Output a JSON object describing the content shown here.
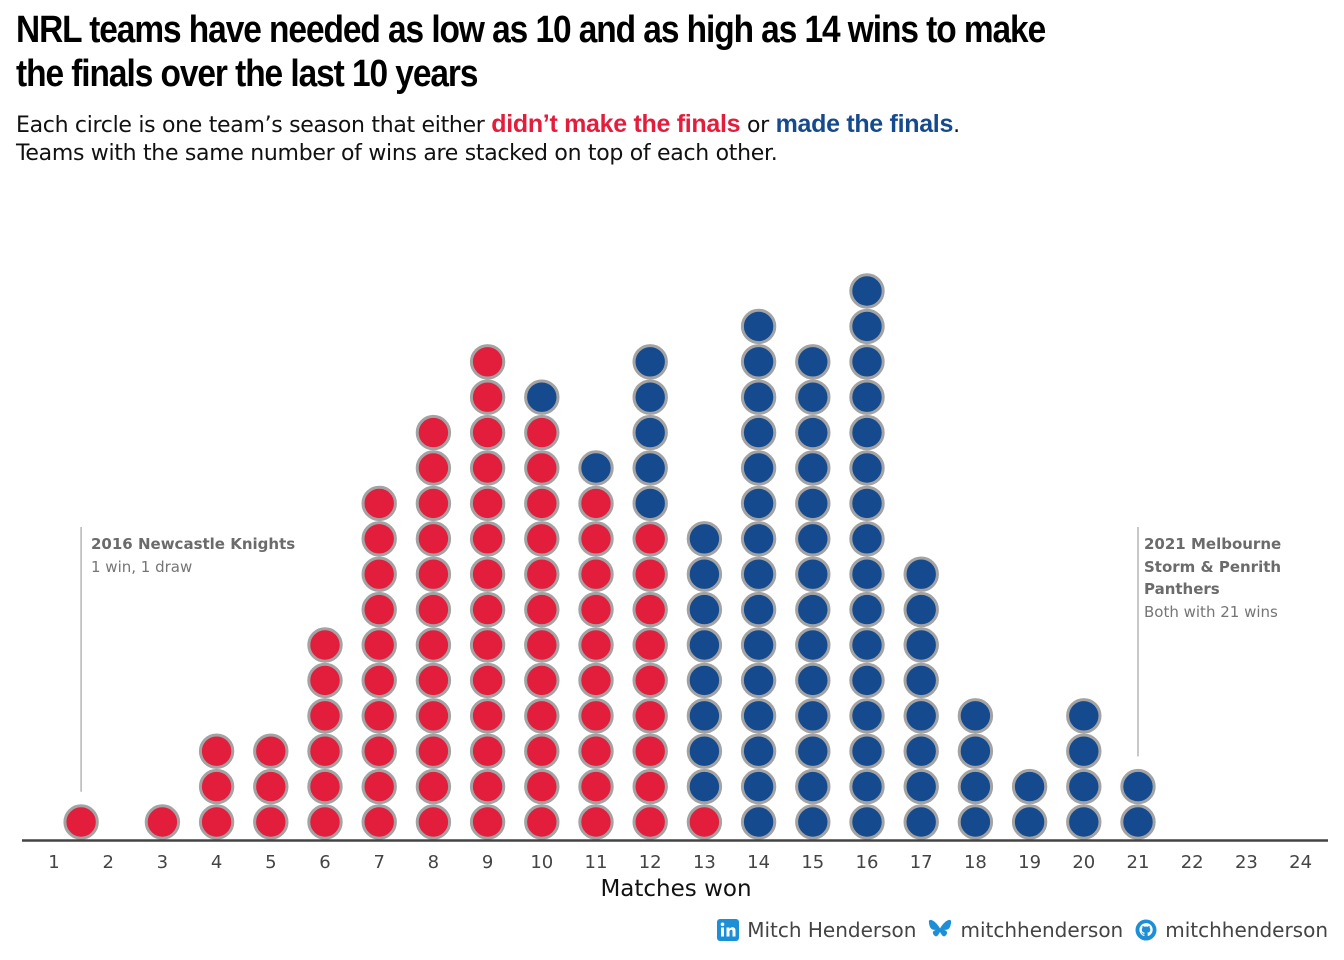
{
  "title_line1": "NRL teams have needed as low as 10 and as high as 14 wins to make",
  "title_line2": "the finals over the last 10 years",
  "subtitle": {
    "prefix": "Each circle is one team’s season that either ",
    "red_text": "didn’t make the finals",
    "middle": " or ",
    "blue_text": "made the finals",
    "suffix": ".",
    "line2": "Teams with the same number of wins are stacked on top of each other."
  },
  "colors": {
    "missed": "#e31d3c",
    "made": "#154a8e",
    "outline": "#a3a3a3",
    "axis": "#444444"
  },
  "chart_data": {
    "type": "scatter",
    "chart_style": "stacked dot plot",
    "xlabel": "Matches won",
    "xlim": [
      1,
      24
    ],
    "x_ticks": [
      1,
      2,
      3,
      4,
      5,
      6,
      7,
      8,
      9,
      10,
      11,
      12,
      13,
      14,
      15,
      16,
      17,
      18,
      19,
      20,
      21,
      22,
      23,
      24
    ],
    "series": [
      {
        "name": "didn’t make the finals",
        "color": "#e31d3c",
        "points": [
          {
            "x": 1.5,
            "count": 1
          },
          {
            "x": 3,
            "count": 1
          },
          {
            "x": 4,
            "count": 3
          },
          {
            "x": 5,
            "count": 3
          },
          {
            "x": 6,
            "count": 6
          },
          {
            "x": 7,
            "count": 10
          },
          {
            "x": 8,
            "count": 12
          },
          {
            "x": 9,
            "count": 14
          },
          {
            "x": 10,
            "count": 12
          },
          {
            "x": 11,
            "count": 10
          },
          {
            "x": 12,
            "count": 9
          },
          {
            "x": 13,
            "count": 1
          }
        ]
      },
      {
        "name": "made the finals",
        "color": "#154a8e",
        "points": [
          {
            "x": 10,
            "count": 1
          },
          {
            "x": 11,
            "count": 1
          },
          {
            "x": 12,
            "count": 5
          },
          {
            "x": 13,
            "count": 8
          },
          {
            "x": 14,
            "count": 15
          },
          {
            "x": 15,
            "count": 14
          },
          {
            "x": 16,
            "count": 16
          },
          {
            "x": 17,
            "count": 8
          },
          {
            "x": 18,
            "count": 4
          },
          {
            "x": 19,
            "count": 2
          },
          {
            "x": 20,
            "count": 4
          },
          {
            "x": 21,
            "count": 2
          }
        ]
      }
    ],
    "annotations": [
      {
        "x": 1.5,
        "title": "2016 Newcastle Knights",
        "text": "1 win, 1 draw"
      },
      {
        "x": 21,
        "title": "2021 Melbourne Storm & Penrith Panthers",
        "text": "Both with 21 wins"
      }
    ]
  },
  "annotations": {
    "left": {
      "title": "2016 Newcastle Knights",
      "text": "1 win, 1 draw"
    },
    "right": {
      "title_line1": "2021 Melbourne",
      "title_line2": "Storm & Penrith",
      "title_line3": "Panthers",
      "text": "Both with 21 wins"
    }
  },
  "footer": {
    "linkedin_icon": "linkedin-icon",
    "linkedin": "Mitch Henderson",
    "bluesky_icon": "bluesky-butterfly-icon",
    "bluesky": "mitchhenderson",
    "github_icon": "github-icon",
    "github": "mitchhenderson"
  }
}
